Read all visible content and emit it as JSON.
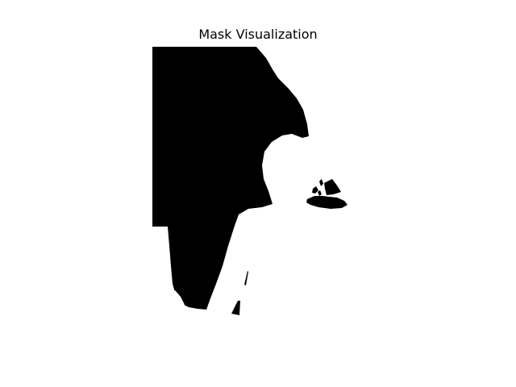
{
  "figure": {
    "title": "Mask Visualization"
  },
  "mask": {
    "foreground_color": "#000000",
    "background_color": "#ffffff"
  }
}
